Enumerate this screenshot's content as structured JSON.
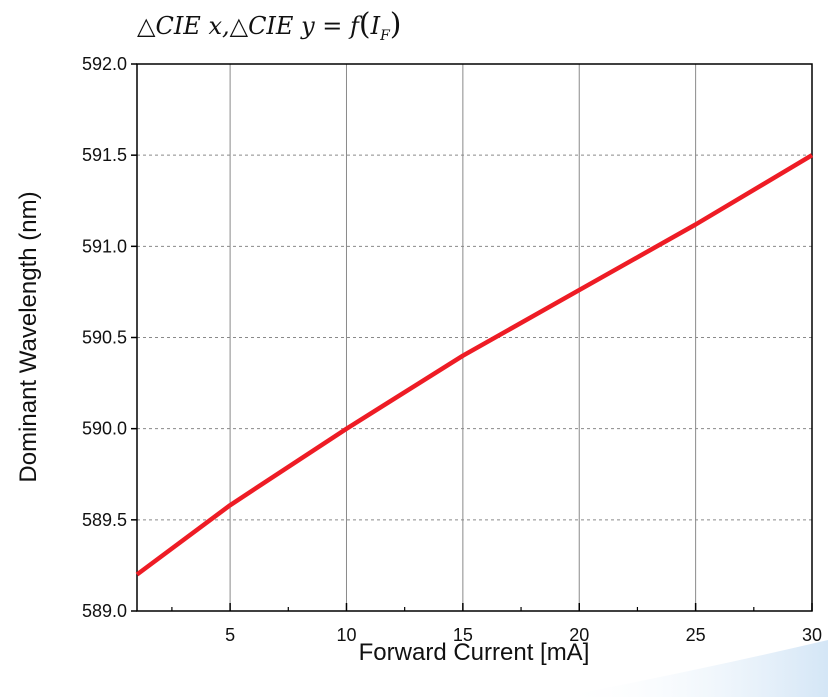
{
  "chart_data": {
    "type": "line",
    "title": "△CIE x,△CIE y = f(I_F)",
    "title_parts": {
      "prefix": "△CIE x,△CIE y = f",
      "open": "(",
      "main": "I",
      "sub": "F",
      "close": ")"
    },
    "xlabel": "Forward Current [mA]",
    "ylabel": "Dominant Wavelength (nm)",
    "xlim": [
      1,
      30
    ],
    "ylim": [
      589.0,
      592.0
    ],
    "x_ticks": [
      5,
      10,
      15,
      20,
      25,
      30
    ],
    "x_tick_labels": [
      "5",
      "10",
      "15",
      "20",
      "25",
      "30"
    ],
    "x_minor_ticks": [
      2.5,
      7.5,
      12.5,
      17.5,
      22.5,
      27.5
    ],
    "y_ticks": [
      589.0,
      589.5,
      590.0,
      590.5,
      591.0,
      591.5,
      592.0
    ],
    "y_tick_labels": [
      "589.0",
      "589.5",
      "590.0",
      "590.5",
      "591.0",
      "591.5",
      "592.0"
    ],
    "grid": true,
    "series": [
      {
        "x": [
          1,
          5,
          10,
          15,
          20,
          25,
          30
        ],
        "y": [
          589.2,
          589.58,
          590.0,
          590.4,
          590.76,
          591.12,
          591.5
        ],
        "color": "#ee1c25"
      }
    ]
  }
}
